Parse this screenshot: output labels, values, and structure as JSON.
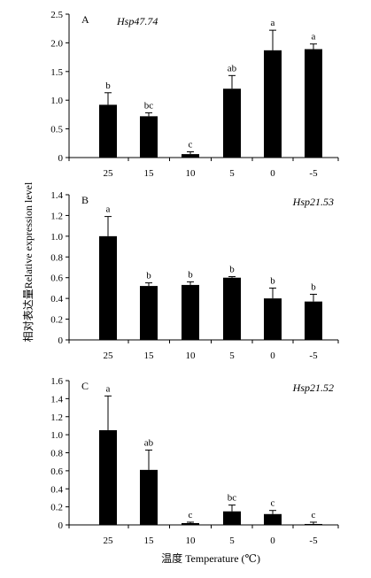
{
  "figure": {
    "ylabel": "相对表达量Relative expression level",
    "xlabel": "温度 Temperature (℃)"
  },
  "chart_data": [
    {
      "type": "bar",
      "panel": "A",
      "gene": "Hsp47.74",
      "categories": [
        "25",
        "15",
        "10",
        "5",
        "0",
        "-5"
      ],
      "values": [
        0.92,
        0.72,
        0.06,
        1.2,
        1.87,
        1.89
      ],
      "errors": [
        0.21,
        0.06,
        0.04,
        0.23,
        0.35,
        0.09
      ],
      "letters": [
        "b",
        "bc",
        "c",
        "ab",
        "a",
        "a"
      ],
      "ylim": [
        0,
        2.5
      ],
      "yticks": [
        "0",
        "0.5",
        "1.0",
        "1.5",
        "2.0",
        "2.5"
      ]
    },
    {
      "type": "bar",
      "panel": "B",
      "gene": "Hsp21.53",
      "categories": [
        "25",
        "15",
        "10",
        "5",
        "0",
        "-5"
      ],
      "values": [
        1.0,
        0.52,
        0.53,
        0.6,
        0.4,
        0.37
      ],
      "errors": [
        0.19,
        0.03,
        0.03,
        0.01,
        0.1,
        0.07
      ],
      "letters": [
        "a",
        "b",
        "b",
        "b",
        "b",
        "b"
      ],
      "ylim": [
        0,
        1.4
      ],
      "yticks": [
        "0",
        "0.2",
        "0.4",
        "0.6",
        "0.8",
        "1.0",
        "1.2",
        "1.4"
      ]
    },
    {
      "type": "bar",
      "panel": "C",
      "gene": "Hsp21.52",
      "categories": [
        "25",
        "15",
        "10",
        "5",
        "0",
        "-5"
      ],
      "values": [
        1.05,
        0.61,
        0.02,
        0.15,
        0.12,
        0.01
      ],
      "errors": [
        0.38,
        0.22,
        0.01,
        0.07,
        0.04,
        0.02
      ],
      "letters": [
        "a",
        "ab",
        "c",
        "bc",
        "c",
        "c"
      ],
      "ylim": [
        0,
        1.6
      ],
      "yticks": [
        "0",
        "0.2",
        "0.4",
        "0.6",
        "0.8",
        "1.0",
        "1.2",
        "1.4",
        "1.6"
      ]
    }
  ]
}
